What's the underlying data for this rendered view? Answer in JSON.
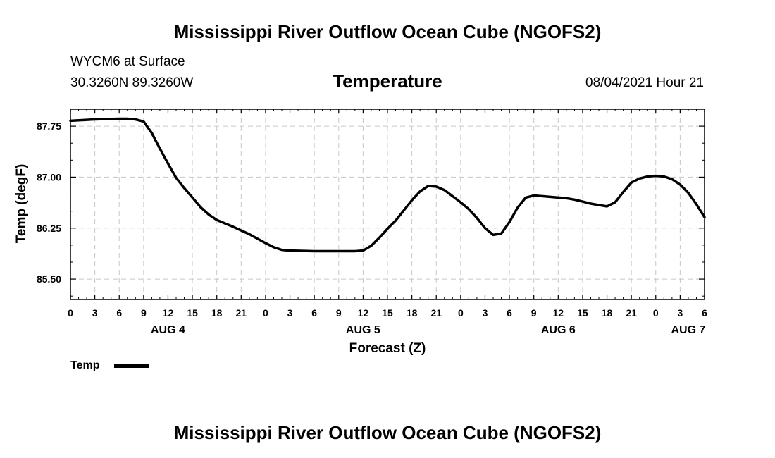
{
  "header": {
    "title": "Mississippi River Outflow Ocean Cube (NGOFS2)",
    "station": "WYCM6 at Surface",
    "coords": "30.3260N  89.3260W",
    "parameter": "Temperature",
    "timestamp": "08/04/2021 Hour 21"
  },
  "footer": {
    "title": "Mississippi River Outflow Ocean Cube (NGOFS2)"
  },
  "legend": {
    "label": "Temp"
  },
  "colors": {
    "line": "#000000",
    "grid": "#c8c8c8",
    "background": "#ffffff"
  },
  "chart_data": {
    "type": "line",
    "title": "Temperature",
    "xlabel": "Forecast (Z)",
    "ylabel": "Temp (degF)",
    "x_range_hours": [
      0,
      78
    ],
    "ylim": [
      85.2,
      88.0
    ],
    "y_ticks": [
      85.5,
      86.25,
      87.0,
      87.75
    ],
    "y_tick_labels": [
      "85.50",
      "86.25",
      "87.00",
      "87.75"
    ],
    "x_tick_hours": [
      0,
      3,
      6,
      9,
      12,
      15,
      18,
      21,
      24,
      27,
      30,
      33,
      36,
      39,
      42,
      45,
      48,
      51,
      54,
      57,
      60,
      63,
      66,
      69,
      72,
      75,
      78
    ],
    "x_tick_labels": [
      "0",
      "3",
      "6",
      "9",
      "12",
      "15",
      "18",
      "21",
      "0",
      "3",
      "6",
      "9",
      "12",
      "15",
      "18",
      "21",
      "0",
      "3",
      "6",
      "9",
      "12",
      "15",
      "18",
      "21",
      "0",
      "3",
      "6"
    ],
    "date_labels": [
      {
        "hour": 12,
        "label": "AUG 4"
      },
      {
        "hour": 36,
        "label": "AUG 5"
      },
      {
        "hour": 60,
        "label": "AUG 6"
      },
      {
        "hour": 76,
        "label": "AUG 7"
      }
    ],
    "grid": true,
    "series": [
      {
        "name": "Temp",
        "x": [
          0,
          3,
          6,
          7,
          8,
          9,
          10,
          11,
          12,
          13,
          14,
          15,
          16,
          17,
          18,
          20,
          22,
          24,
          25,
          26,
          27,
          30,
          33,
          35,
          36,
          37,
          38,
          39,
          40,
          41,
          42,
          43,
          44,
          45,
          46,
          47,
          48,
          49,
          50,
          51,
          52,
          53,
          54,
          55,
          56,
          57,
          58,
          59,
          60,
          61,
          62,
          63,
          64,
          65,
          66,
          67,
          68,
          69,
          70,
          71,
          72,
          73,
          74,
          75,
          76,
          77,
          78
        ],
        "values": [
          87.83,
          87.85,
          87.86,
          87.86,
          87.85,
          87.82,
          87.65,
          87.42,
          87.2,
          86.99,
          86.84,
          86.7,
          86.56,
          86.45,
          86.37,
          86.27,
          86.16,
          86.03,
          85.97,
          85.93,
          85.92,
          85.91,
          85.91,
          85.91,
          85.92,
          85.99,
          86.11,
          86.24,
          86.36,
          86.51,
          86.66,
          86.79,
          86.87,
          86.86,
          86.81,
          86.72,
          86.63,
          86.53,
          86.4,
          86.25,
          86.15,
          86.17,
          86.34,
          86.55,
          86.7,
          86.73,
          86.72,
          86.71,
          86.7,
          86.69,
          86.67,
          86.64,
          86.61,
          86.59,
          86.57,
          86.63,
          86.78,
          86.92,
          86.98,
          87.01,
          87.02,
          87.01,
          86.97,
          86.89,
          86.77,
          86.6,
          86.41
        ]
      }
    ]
  }
}
